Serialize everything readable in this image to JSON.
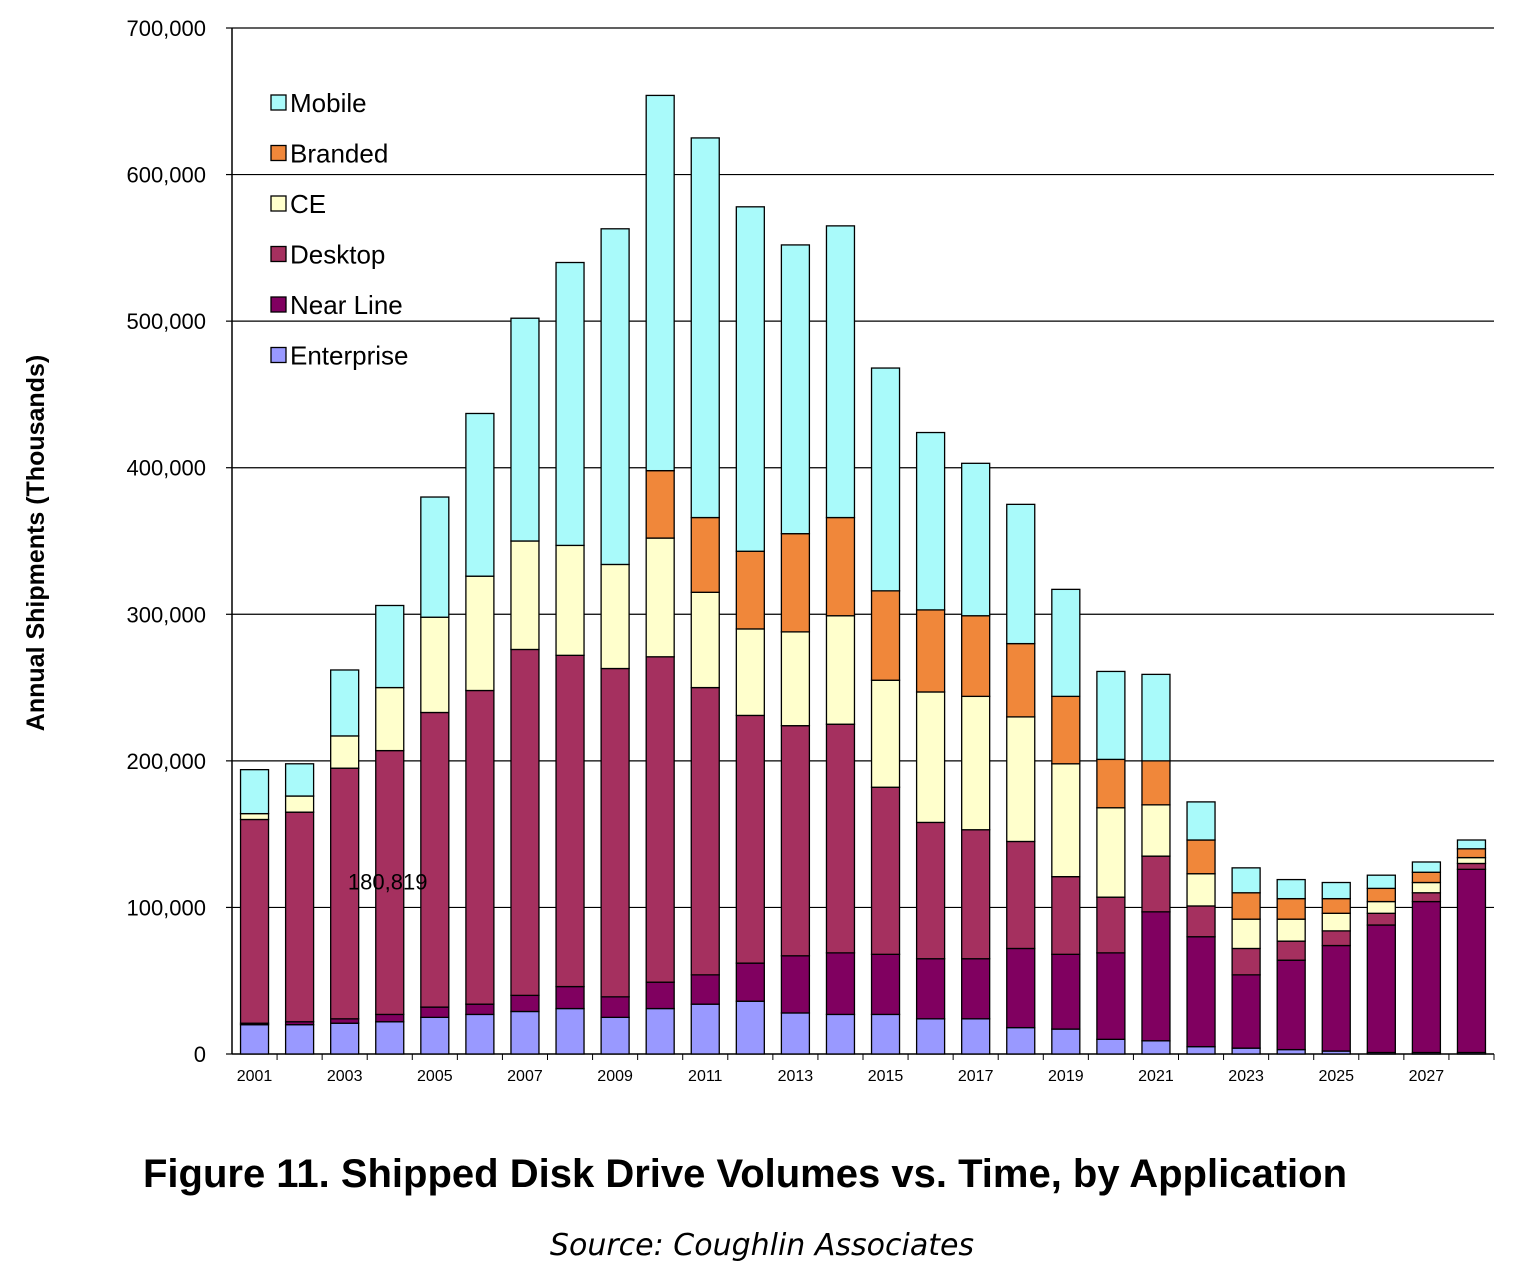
{
  "chart_data": {
    "type": "bar",
    "stacked": true,
    "ylabel": "Annual Shipments (Thousands)",
    "xlabel": "",
    "ylim": [
      0,
      700000
    ],
    "yticks": [
      0,
      100000,
      200000,
      300000,
      400000,
      500000,
      600000,
      700000
    ],
    "ytick_labels": [
      "0",
      "100,000",
      "200,000",
      "300,000",
      "400,000",
      "500,000",
      "600,000",
      "700,000"
    ],
    "grid": true,
    "legend_position": "top-left",
    "categories": [
      "2001",
      "2002",
      "2003",
      "2004",
      "2005",
      "2006",
      "2007",
      "2008",
      "2009",
      "2010",
      "2011",
      "2012",
      "2013",
      "2014",
      "2015",
      "2016",
      "2017",
      "2018",
      "2019",
      "2020",
      "2021",
      "2022",
      "2023",
      "2024",
      "2025",
      "2026",
      "2027",
      "2028"
    ],
    "x_tick_labels": [
      "2001",
      "",
      "2003",
      "",
      "2005",
      "",
      "2007",
      "",
      "2009",
      "",
      "2011",
      "",
      "2013",
      "",
      "2015",
      "",
      "2017",
      "",
      "2019",
      "",
      "2021",
      "",
      "2023",
      "",
      "2025",
      "",
      "2027",
      ""
    ],
    "series": [
      {
        "name": "Enterprise",
        "color": "#9999ff",
        "values": [
          20000,
          20000,
          21000,
          22000,
          25000,
          27000,
          29000,
          31000,
          25000,
          31000,
          34000,
          36000,
          28000,
          27000,
          27000,
          24000,
          24000,
          18000,
          17000,
          10000,
          9000,
          5000,
          4000,
          3000,
          2000,
          1000,
          1000,
          1000
        ]
      },
      {
        "name": "Near Line",
        "color": "#800060",
        "values": [
          1000,
          2000,
          3000,
          5000,
          7000,
          7000,
          11000,
          15000,
          14000,
          18000,
          20000,
          26000,
          39000,
          42000,
          41000,
          41000,
          41000,
          54000,
          51000,
          59000,
          88000,
          75000,
          50000,
          61000,
          72000,
          87000,
          103000,
          125000
        ]
      },
      {
        "name": "Desktop",
        "color": "#a5305f",
        "values": [
          139000,
          143000,
          171000,
          180000,
          201000,
          214000,
          236000,
          226000,
          224000,
          222000,
          196000,
          169000,
          157000,
          156000,
          114000,
          93000,
          88000,
          73000,
          53000,
          38000,
          38000,
          21000,
          18000,
          13000,
          10000,
          8000,
          6000,
          4000
        ]
      },
      {
        "name": "CE",
        "color": "#ffffcc",
        "values": [
          4000,
          11000,
          22000,
          43000,
          65000,
          78000,
          74000,
          75000,
          71000,
          81000,
          65000,
          59000,
          64000,
          74000,
          73000,
          89000,
          91000,
          85000,
          77000,
          61000,
          35000,
          22000,
          20000,
          15000,
          12000,
          8000,
          7000,
          4000
        ]
      },
      {
        "name": "Branded",
        "color": "#f0873a",
        "values": [
          0,
          0,
          0,
          0,
          0,
          0,
          0,
          0,
          0,
          46000,
          51000,
          53000,
          67000,
          67000,
          61000,
          56000,
          55000,
          50000,
          46000,
          33000,
          30000,
          23000,
          18000,
          14000,
          10000,
          9000,
          7000,
          6000
        ]
      },
      {
        "name": "Mobile",
        "color": "#a9fafa",
        "values": [
          30000,
          22000,
          45000,
          56000,
          82000,
          111000,
          152000,
          193000,
          229000,
          256000,
          259000,
          235000,
          197000,
          199000,
          152000,
          121000,
          104000,
          95000,
          73000,
          60000,
          59000,
          26000,
          17000,
          13000,
          11000,
          9000,
          7000,
          6000
        ]
      }
    ],
    "legend_order": [
      "Mobile",
      "Branded",
      "CE",
      "Desktop",
      "Near Line",
      "Enterprise"
    ],
    "annotations": [
      {
        "text": "180,819",
        "x": "2003",
        "y": 117000
      }
    ]
  },
  "caption": {
    "title": "Figure 11. Shipped Disk Drive Volumes vs. Time, by Application",
    "source": "Source:  Coughlin Associates"
  }
}
